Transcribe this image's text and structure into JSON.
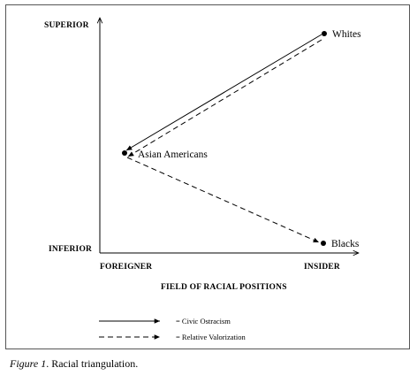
{
  "diagram": {
    "y_axis": {
      "top_label": "SUPERIOR",
      "bottom_label": "INFERIOR"
    },
    "x_axis": {
      "left_label": "FOREIGNER",
      "right_label": "INSIDER",
      "title": "FIELD OF RACIAL POSITIONS"
    },
    "nodes": [
      {
        "label": "Whites"
      },
      {
        "label": "Asian Americans"
      },
      {
        "label": "Blacks"
      }
    ],
    "legend": [
      {
        "line_style": "solid",
        "label": "= Civic Ostracism"
      },
      {
        "line_style": "dashed",
        "label": "= Relative Valorization"
      }
    ]
  },
  "caption": {
    "figure_number": "Figure 1",
    "text": ". Racial triangulation."
  }
}
